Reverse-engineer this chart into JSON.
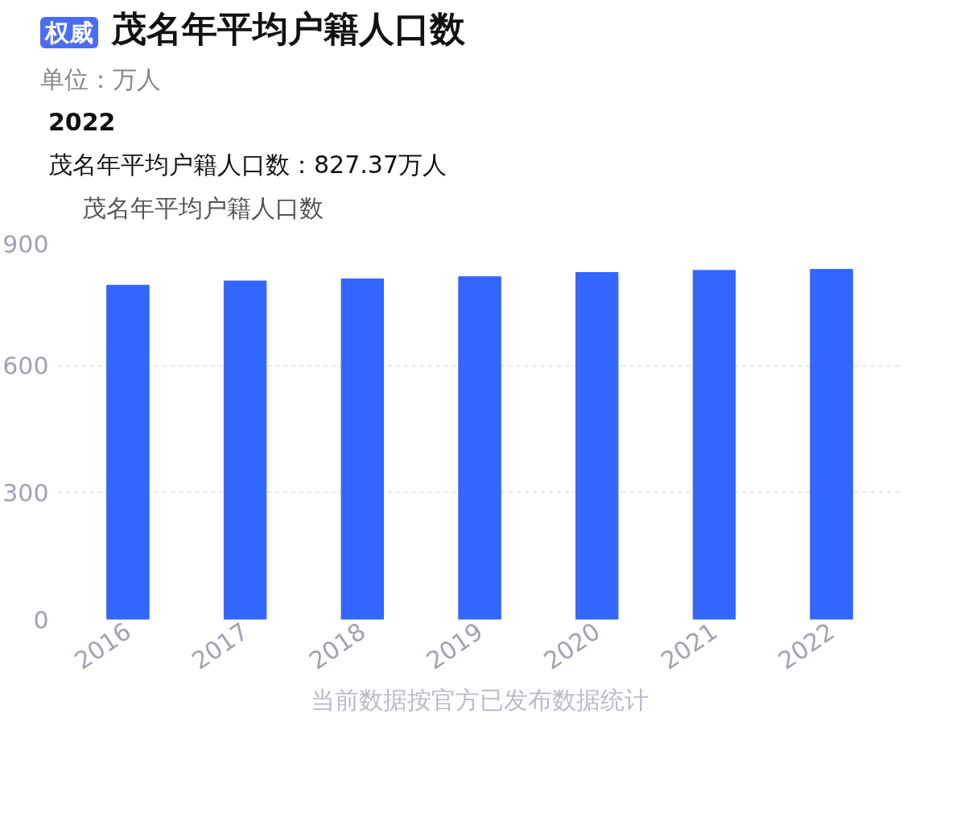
{
  "chart_data": {
    "type": "bar",
    "title": "茂名年平均户籍人口数",
    "subtitle": "单位：万人",
    "categories": [
      "2016",
      "2017",
      "2018",
      "2019",
      "2020",
      "2021",
      "2022"
    ],
    "series": [
      {
        "name": "茂名年平均户籍人口数",
        "color": "#3366ff",
        "values": [
          790,
          800,
          805,
          810,
          820,
          825,
          827.37
        ]
      }
    ],
    "ylim": [
      0,
      900
    ],
    "yticks": [
      0,
      300,
      600,
      900
    ],
    "grid": "y",
    "legend": "top left",
    "annotations": [
      "权威",
      "2022",
      "茂名年平均户籍人口数：827.37万人",
      "当前数据按官方已发布数据统计"
    ]
  }
}
